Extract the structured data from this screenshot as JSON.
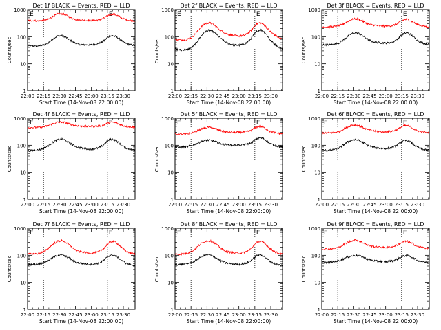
{
  "figure": {
    "xlabel": "Start Time (14-Nov-08 22:00:00)",
    "ylabel": "Counts/sec",
    "x_ticks": [
      "22:00",
      "22:15",
      "22:30",
      "22:45",
      "23:00",
      "23:15",
      "23:30"
    ],
    "y_ticks": [
      "1",
      "10",
      "100",
      "1000"
    ],
    "marker_label": "E",
    "colors": {
      "events": "#000000",
      "lld": "#ff0000",
      "background": "#ffffff"
    }
  },
  "chart_data": [
    {
      "type": "line",
      "title": "Det 1f BLACK = Events, RED = LLD",
      "x_minutes": [
        0,
        6,
        11,
        16,
        20,
        24,
        28,
        32,
        35,
        39,
        43,
        48,
        54,
        60,
        66,
        71,
        74,
        77,
        80,
        83,
        86,
        89,
        93,
        97,
        101
      ],
      "series": [
        {
          "name": "BLACK = Events",
          "color": "#000000",
          "values": [
            45,
            45,
            46,
            50,
            62,
            85,
            105,
            110,
            100,
            80,
            62,
            52,
            50,
            50,
            54,
            66,
            85,
            105,
            110,
            100,
            85,
            68,
            55,
            50,
            48
          ]
        },
        {
          "name": "RED = LLD",
          "color": "#ff0000",
          "values": [
            400,
            390,
            385,
            400,
            450,
            560,
            680,
            700,
            650,
            540,
            460,
            410,
            400,
            400,
            410,
            460,
            550,
            650,
            690,
            640,
            560,
            470,
            420,
            400,
            390
          ]
        }
      ],
      "markers": [
        15,
        75
      ],
      "ylim": [
        1,
        1000
      ],
      "yscale": "log",
      "xlim": [
        0,
        101
      ]
    },
    {
      "type": "line",
      "title": "Det 2f BLACK = Events, RED = LLD",
      "x_minutes": [
        0,
        6,
        11,
        16,
        20,
        24,
        28,
        32,
        35,
        39,
        43,
        48,
        54,
        60,
        66,
        71,
        74,
        77,
        80,
        83,
        86,
        89,
        93,
        97,
        101
      ],
      "series": [
        {
          "name": "BLACK = Events",
          "color": "#000000",
          "values": [
            35,
            32,
            33,
            40,
            60,
            100,
            150,
            175,
            160,
            120,
            85,
            60,
            50,
            48,
            55,
            80,
            120,
            160,
            180,
            160,
            120,
            80,
            55,
            42,
            35
          ]
        },
        {
          "name": "RED = LLD",
          "color": "#ff0000",
          "values": [
            80,
            75,
            78,
            95,
            140,
            220,
            300,
            330,
            300,
            230,
            170,
            130,
            110,
            105,
            115,
            160,
            230,
            300,
            330,
            290,
            220,
            160,
            120,
            95,
            80
          ]
        }
      ],
      "markers": [
        15,
        75
      ],
      "ylim": [
        1,
        1000
      ],
      "yscale": "log",
      "xlim": [
        0,
        101
      ]
    },
    {
      "type": "line",
      "title": "Det 3f BLACK = Events, RED = LLD",
      "x_minutes": [
        0,
        6,
        11,
        16,
        20,
        24,
        28,
        32,
        35,
        39,
        43,
        48,
        54,
        60,
        66,
        71,
        74,
        77,
        80,
        83,
        86,
        89,
        93,
        97,
        101
      ],
      "series": [
        {
          "name": "BLACK = Events",
          "color": "#000000",
          "values": [
            50,
            50,
            52,
            58,
            75,
            100,
            130,
            140,
            130,
            105,
            80,
            65,
            60,
            58,
            62,
            80,
            105,
            130,
            140,
            125,
            100,
            78,
            62,
            55,
            52
          ]
        },
        {
          "name": "RED = LLD",
          "color": "#ff0000",
          "values": [
            230,
            230,
            235,
            250,
            290,
            360,
            430,
            460,
            430,
            360,
            300,
            270,
            250,
            245,
            255,
            300,
            360,
            420,
            440,
            400,
            340,
            290,
            260,
            240,
            235
          ]
        }
      ],
      "markers": [
        15,
        75
      ],
      "ylim": [
        1,
        1000
      ],
      "yscale": "log",
      "xlim": [
        0,
        101
      ]
    },
    {
      "type": "line",
      "title": "Det 4f BLACK = Events, RED = LLD",
      "x_minutes": [
        0,
        6,
        11,
        16,
        20,
        24,
        28,
        32,
        35,
        39,
        43,
        48,
        54,
        60,
        66,
        71,
        74,
        77,
        80,
        83,
        86,
        89,
        93,
        97,
        101
      ],
      "series": [
        {
          "name": "BLACK = Events",
          "color": "#000000",
          "values": [
            62,
            65,
            68,
            80,
            100,
            130,
            160,
            170,
            155,
            125,
            100,
            82,
            75,
            72,
            78,
            100,
            130,
            160,
            170,
            150,
            120,
            95,
            78,
            70,
            65
          ]
        },
        {
          "name": "RED = LLD",
          "color": "#ff0000",
          "values": [
            450,
            450,
            460,
            490,
            550,
            630,
            700,
            720,
            690,
            620,
            560,
            520,
            500,
            495,
            505,
            550,
            620,
            690,
            710,
            670,
            600,
            540,
            500,
            480,
            470
          ]
        }
      ],
      "markers": [
        15,
        75
      ],
      "ylim": [
        1,
        1000
      ],
      "yscale": "log",
      "xlim": [
        0,
        101
      ]
    },
    {
      "type": "line",
      "title": "Det 5f BLACK = Events, RED = LLD",
      "x_minutes": [
        0,
        6,
        11,
        16,
        20,
        24,
        28,
        32,
        35,
        39,
        43,
        48,
        54,
        60,
        66,
        71,
        74,
        77,
        80,
        83,
        86,
        89,
        93,
        97,
        101
      ],
      "series": [
        {
          "name": "BLACK = Events",
          "color": "#000000",
          "values": [
            85,
            85,
            88,
            98,
            115,
            135,
            150,
            155,
            148,
            130,
            115,
            105,
            100,
            100,
            105,
            120,
            145,
            175,
            190,
            175,
            145,
            118,
            100,
            90,
            85
          ]
        },
        {
          "name": "RED = LLD",
          "color": "#ff0000",
          "values": [
            260,
            255,
            260,
            285,
            330,
            390,
            440,
            460,
            440,
            390,
            340,
            310,
            300,
            300,
            310,
            350,
            410,
            470,
            500,
            460,
            390,
            330,
            295,
            275,
            265
          ]
        }
      ],
      "markers": [
        15,
        75
      ],
      "ylim": [
        1,
        1000
      ],
      "yscale": "log",
      "xlim": [
        0,
        101
      ]
    },
    {
      "type": "line",
      "title": "Det 6f BLACK = Events, RED = LLD",
      "x_minutes": [
        0,
        6,
        11,
        16,
        20,
        24,
        28,
        32,
        35,
        39,
        43,
        48,
        54,
        60,
        66,
        71,
        74,
        77,
        80,
        83,
        86,
        89,
        93,
        97,
        101
      ],
      "series": [
        {
          "name": "BLACK = Events",
          "color": "#000000",
          "values": [
            65,
            65,
            68,
            78,
            100,
            130,
            155,
            160,
            150,
            125,
            100,
            85,
            78,
            76,
            82,
            100,
            125,
            145,
            150,
            135,
            110,
            88,
            75,
            68,
            65
          ]
        },
        {
          "name": "RED = LLD",
          "color": "#ff0000",
          "values": [
            290,
            285,
            290,
            320,
            380,
            470,
            550,
            570,
            530,
            450,
            380,
            340,
            320,
            315,
            330,
            380,
            450,
            520,
            540,
            490,
            410,
            350,
            315,
            300,
            290
          ]
        }
      ],
      "markers": [
        15,
        75
      ],
      "ylim": [
        1,
        1000
      ],
      "yscale": "log",
      "xlim": [
        0,
        101
      ]
    },
    {
      "type": "line",
      "title": "Det 7f BLACK = Events, RED = LLD",
      "x_minutes": [
        0,
        6,
        11,
        16,
        20,
        24,
        28,
        32,
        35,
        39,
        43,
        48,
        54,
        60,
        66,
        71,
        74,
        77,
        80,
        83,
        86,
        89,
        93,
        97,
        101
      ],
      "series": [
        {
          "name": "BLACK = Events",
          "color": "#000000",
          "values": [
            45,
            46,
            48,
            55,
            68,
            85,
            100,
            105,
            95,
            80,
            62,
            52,
            48,
            46,
            50,
            62,
            80,
            98,
            105,
            95,
            78,
            62,
            50,
            45,
            42
          ]
        },
        {
          "name": "RED = LLD",
          "color": "#ff0000",
          "values": [
            110,
            112,
            118,
            140,
            190,
            260,
            330,
            350,
            320,
            250,
            180,
            140,
            125,
            120,
            130,
            170,
            230,
            300,
            330,
            300,
            240,
            180,
            140,
            120,
            110
          ]
        }
      ],
      "markers": [
        15,
        75
      ],
      "ylim": [
        1,
        1000
      ],
      "yscale": "log",
      "xlim": [
        0,
        101
      ]
    },
    {
      "type": "line",
      "title": "Det 8f BLACK = Events, RED = LLD",
      "x_minutes": [
        0,
        6,
        11,
        16,
        20,
        24,
        28,
        32,
        35,
        39,
        43,
        48,
        54,
        60,
        66,
        71,
        74,
        77,
        80,
        83,
        86,
        89,
        93,
        97,
        101
      ],
      "series": [
        {
          "name": "BLACK = Events",
          "color": "#000000",
          "values": [
            45,
            46,
            48,
            55,
            68,
            85,
            100,
            105,
            95,
            80,
            62,
            52,
            48,
            46,
            50,
            62,
            80,
            98,
            105,
            95,
            78,
            62,
            50,
            45,
            42
          ]
        },
        {
          "name": "RED = LLD",
          "color": "#ff0000",
          "values": [
            110,
            112,
            118,
            140,
            190,
            260,
            330,
            350,
            320,
            250,
            180,
            140,
            125,
            120,
            130,
            170,
            230,
            300,
            330,
            300,
            240,
            180,
            140,
            120,
            110
          ]
        }
      ],
      "markers": [
        15,
        75
      ],
      "ylim": [
        1,
        1000
      ],
      "yscale": "log",
      "xlim": [
        0,
        101
      ]
    },
    {
      "type": "line",
      "title": "Det 9f BLACK = Events, RED = LLD",
      "x_minutes": [
        0,
        6,
        11,
        16,
        20,
        24,
        28,
        32,
        35,
        39,
        43,
        48,
        54,
        60,
        66,
        71,
        74,
        77,
        80,
        83,
        86,
        89,
        93,
        97,
        101
      ],
      "series": [
        {
          "name": "BLACK = Events",
          "color": "#000000",
          "values": [
            55,
            55,
            57,
            62,
            72,
            85,
            95,
            100,
            95,
            85,
            72,
            64,
            60,
            58,
            62,
            72,
            85,
            95,
            100,
            92,
            80,
            68,
            60,
            56,
            54
          ]
        },
        {
          "name": "RED = LLD",
          "color": "#ff0000",
          "values": [
            170,
            170,
            175,
            195,
            240,
            300,
            350,
            370,
            340,
            290,
            240,
            210,
            200,
            195,
            205,
            240,
            280,
            320,
            330,
            300,
            260,
            220,
            200,
            185,
            180
          ]
        }
      ],
      "markers": [
        15,
        75
      ],
      "ylim": [
        1,
        1000
      ],
      "yscale": "log",
      "xlim": [
        0,
        101
      ]
    }
  ]
}
